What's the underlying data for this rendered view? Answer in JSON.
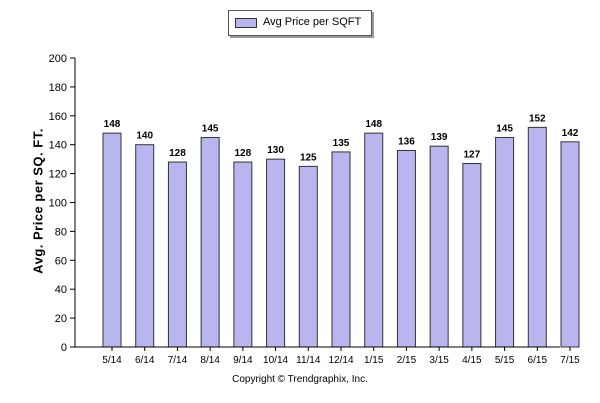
{
  "chart_data": {
    "type": "bar",
    "categories": [
      "5/14",
      "6/14",
      "7/14",
      "8/14",
      "9/14",
      "10/14",
      "11/14",
      "12/14",
      "1/15",
      "2/15",
      "3/15",
      "4/15",
      "5/15",
      "6/15",
      "7/15"
    ],
    "series": [
      {
        "name": "Avg Price per SQFT",
        "values": [
          148,
          140,
          128,
          145,
          128,
          130,
          125,
          135,
          148,
          136,
          139,
          127,
          145,
          152,
          142
        ]
      }
    ],
    "ylabel": "Avg. Price per SQ. FT.",
    "xlabel": "",
    "ylim": [
      0,
      200
    ],
    "yticks": [
      0,
      20,
      40,
      60,
      80,
      100,
      120,
      140,
      160,
      180,
      200
    ],
    "legend_position": "top-center",
    "grid": false,
    "bar_color": "#b9b6ef",
    "bar_border_color": "#333333"
  },
  "footer": {
    "copyright": "Copyright © Trendgraphix, Inc."
  }
}
